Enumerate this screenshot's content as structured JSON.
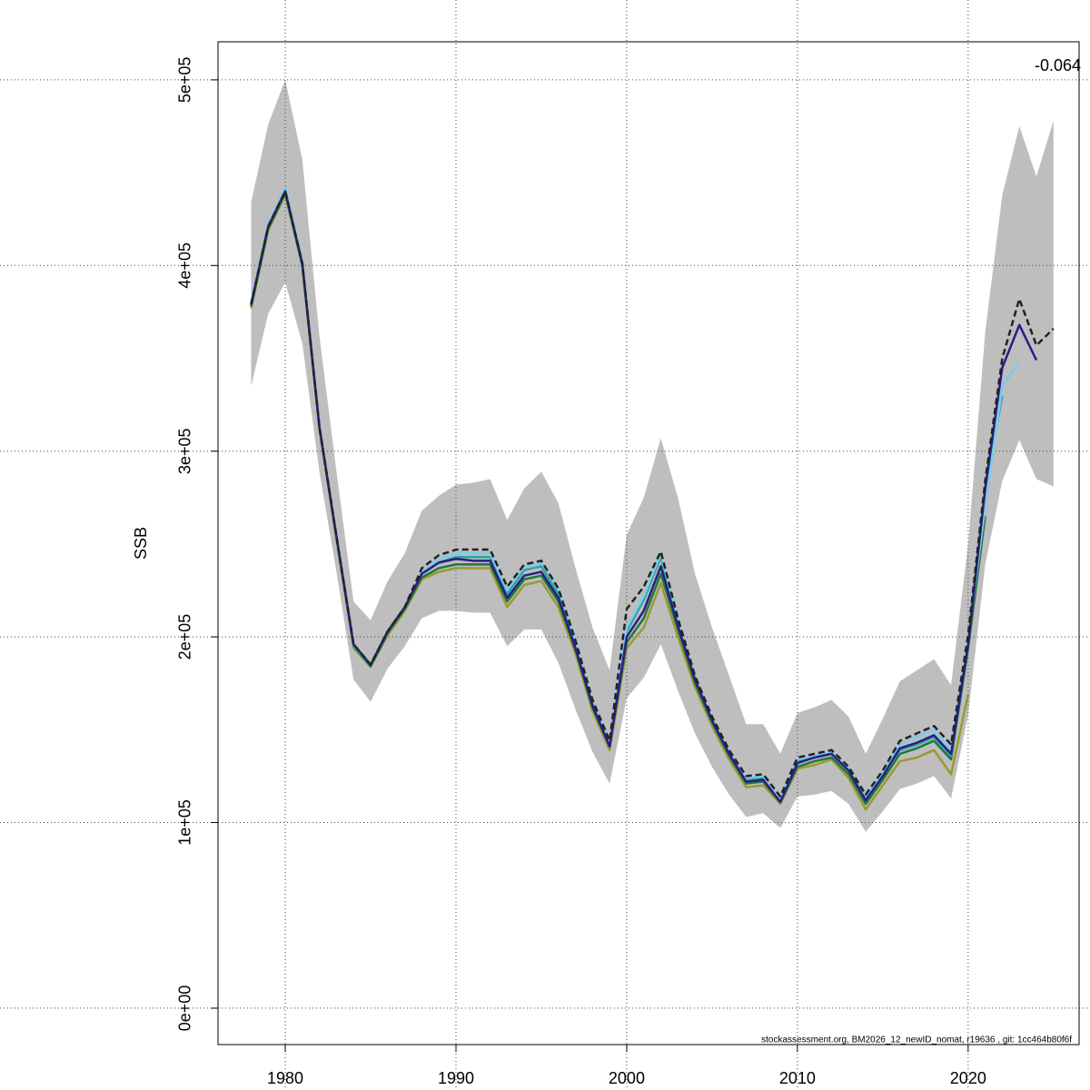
{
  "chart_data": {
    "type": "line",
    "y_label": "SSB",
    "annotation": "-0.064",
    "footer": "stockassessment.org, BM2026_12_newID_nomat, r19636 , git: 1cc464b80f6f",
    "x": [
      1978,
      1979,
      1980,
      1981,
      1982,
      1983,
      1984,
      1985,
      1986,
      1987,
      1988,
      1989,
      1990,
      1991,
      1992,
      1993,
      1994,
      1995,
      1996,
      1997,
      1998,
      1999,
      2000,
      2001,
      2002,
      2003,
      2004,
      2005,
      2006,
      2007,
      2008,
      2009,
      2010,
      2011,
      2012,
      2013,
      2014,
      2015,
      2016,
      2017,
      2018,
      2019,
      2020,
      2021,
      2022,
      2023,
      2024,
      2025
    ],
    "xlim": [
      1976.06,
      2026.5
    ],
    "xticks": [
      1980,
      1990,
      2000,
      2010,
      2020
    ],
    "ylim": [
      -19600,
      520500
    ],
    "yticks": [
      {
        "value": 0,
        "label": "0e+00"
      },
      {
        "value": 100000,
        "label": "1e+05"
      },
      {
        "value": 200000,
        "label": "2e+05"
      },
      {
        "value": 300000,
        "label": "3e+05"
      },
      {
        "value": 400000,
        "label": "4e+05"
      },
      {
        "value": 500000,
        "label": "5e+05"
      }
    ],
    "grid": true,
    "band": {
      "color": "#bebebe",
      "upper": [
        434000,
        476000,
        500000,
        457000,
        362000,
        289000,
        219000,
        209000,
        230000,
        245000,
        268000,
        276000,
        282000,
        283000,
        285000,
        263000,
        280000,
        289000,
        272000,
        237000,
        205000,
        182000,
        255000,
        275000,
        307000,
        275000,
        234000,
        205000,
        179000,
        153000,
        153000,
        137000,
        159000,
        162000,
        166000,
        157000,
        137000,
        156000,
        176000,
        182000,
        188000,
        174000,
        250000,
        364000,
        438000,
        475000,
        448000,
        478000
      ],
      "lower": [
        335000,
        374000,
        391000,
        358000,
        289000,
        235000,
        177000,
        165000,
        183000,
        195000,
        210000,
        214000,
        214000,
        213000,
        213000,
        195000,
        204000,
        204000,
        186000,
        161000,
        138000,
        121000,
        167000,
        178000,
        196000,
        171000,
        148000,
        130000,
        115000,
        103000,
        105000,
        97000,
        114000,
        115000,
        117000,
        110000,
        95000,
        106000,
        118000,
        121000,
        125000,
        113000,
        158000,
        239000,
        284000,
        306000,
        285000,
        281000
      ]
    },
    "series": [
      {
        "color": "#9a9a2e",
        "dash": false,
        "values": [
          377000,
          419000,
          438000,
          400000,
          312000,
          253000,
          194000,
          184000,
          201000,
          214000,
          231000,
          235000,
          237000,
          237000,
          237000,
          216000,
          228000,
          230000,
          216000,
          191000,
          160000,
          139000,
          194000,
          205000,
          229000,
          200000,
          173000,
          152000,
          134000,
          119000,
          120000,
          110000,
          129000,
          131000,
          134000,
          124000,
          107000,
          120000,
          133000,
          135000,
          139000,
          126000,
          169000,
          null,
          null,
          null,
          null,
          null
        ]
      },
      {
        "color": "#1b7a3c",
        "dash": false,
        "values": [
          378000,
          420000,
          439000,
          400000,
          313000,
          253000,
          195000,
          184000,
          202000,
          215000,
          232000,
          237000,
          239000,
          239000,
          239000,
          219000,
          231000,
          233000,
          219000,
          193000,
          162000,
          141000,
          197000,
          210000,
          234000,
          204000,
          175000,
          154000,
          136000,
          121000,
          122000,
          111000,
          130000,
          133000,
          135000,
          126000,
          110000,
          123000,
          137000,
          140000,
          144000,
          134000,
          194000,
          265000,
          null,
          null,
          null,
          null
        ]
      },
      {
        "color": "#2aa6a0",
        "dash": false,
        "values": [
          380000,
          422000,
          441000,
          402000,
          314000,
          254000,
          195000,
          185000,
          203000,
          216000,
          234000,
          240000,
          243000,
          243000,
          243000,
          223000,
          236000,
          238000,
          223000,
          196000,
          164000,
          143000,
          203000,
          220000,
          243000,
          207000,
          177000,
          155000,
          137000,
          123000,
          124000,
          112000,
          133000,
          135000,
          137000,
          128000,
          113000,
          126000,
          139000,
          142000,
          146000,
          136000,
          198000,
          280000,
          330000,
          null,
          null,
          null
        ]
      },
      {
        "color": "#7ccbea",
        "dash": false,
        "values": [
          380000,
          422000,
          442000,
          402000,
          314000,
          254000,
          196000,
          185000,
          203000,
          216000,
          235000,
          242000,
          245000,
          245000,
          245000,
          225000,
          238000,
          240000,
          226000,
          198000,
          165000,
          144000,
          205000,
          222000,
          245000,
          209000,
          178000,
          156000,
          138000,
          124000,
          125000,
          113000,
          134000,
          136000,
          138000,
          129000,
          114000,
          127000,
          142000,
          146000,
          150000,
          139000,
          199000,
          270000,
          335000,
          348000,
          null,
          null
        ]
      },
      {
        "color": "#2e1a87",
        "dash": false,
        "values": [
          379000,
          421000,
          440000,
          401000,
          313000,
          254000,
          196000,
          185000,
          203000,
          216000,
          234000,
          240000,
          242000,
          241000,
          241000,
          221000,
          233000,
          235000,
          221000,
          194000,
          163000,
          141000,
          200000,
          214000,
          238000,
          206000,
          177000,
          155000,
          137000,
          122000,
          123000,
          111000,
          132000,
          135000,
          137000,
          128000,
          112000,
          125000,
          140000,
          143000,
          147000,
          137000,
          196000,
          280000,
          345000,
          368000,
          349000,
          null
        ]
      },
      {
        "color": "#222222",
        "dash": true,
        "values": [
          379000,
          421000,
          440000,
          401000,
          313000,
          254000,
          196000,
          185000,
          203000,
          216000,
          237000,
          244000,
          247000,
          247000,
          247000,
          227000,
          239000,
          241000,
          226000,
          198000,
          166000,
          144000,
          215000,
          227000,
          246000,
          210000,
          179000,
          157000,
          139000,
          125000,
          126000,
          114000,
          135000,
          137000,
          139000,
          130000,
          115000,
          128000,
          144000,
          148000,
          152000,
          142000,
          201000,
          284000,
          350000,
          382000,
          357000,
          366000
        ]
      }
    ]
  }
}
